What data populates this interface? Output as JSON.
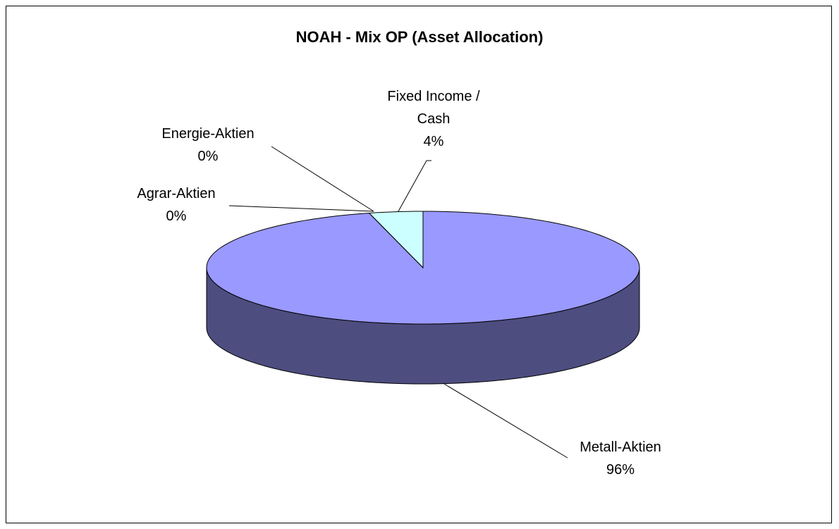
{
  "chart_data": {
    "type": "pie",
    "title": "NOAH - Mix OP (Asset Allocation)",
    "categories": [
      "Metall-Aktien",
      "Agrar-Aktien",
      "Energie-Aktien",
      "Fixed Income / Cash"
    ],
    "values": [
      96,
      0,
      0,
      4
    ],
    "value_labels": [
      "96%",
      "0%",
      "0%",
      "4%"
    ],
    "colors": [
      "#9999ff",
      "#993366",
      "#ffffcc",
      "#ccffff"
    ]
  }
}
